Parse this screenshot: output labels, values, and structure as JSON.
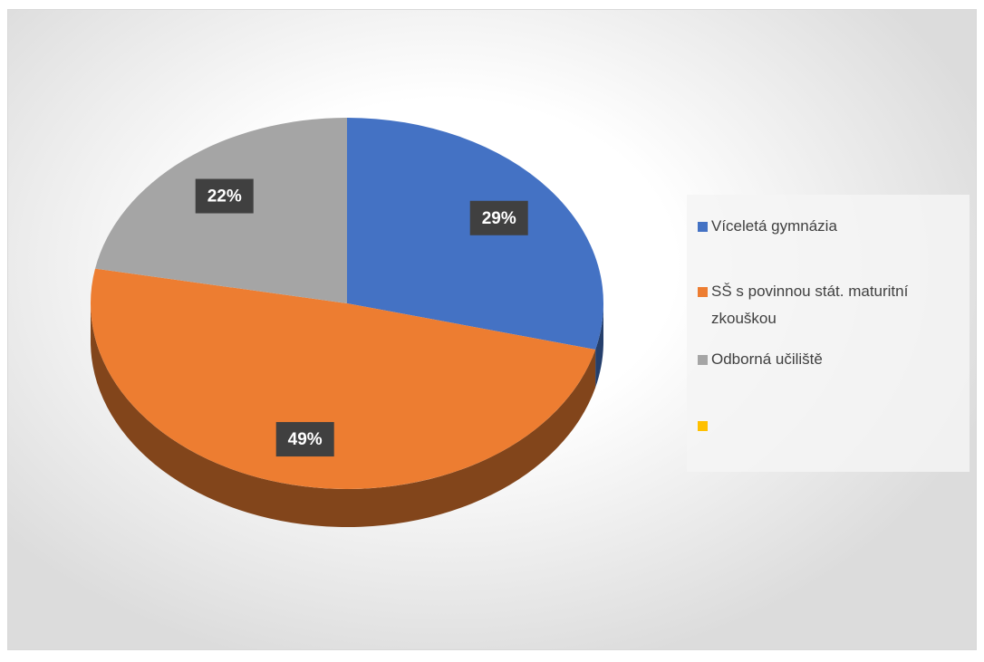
{
  "chart_data": {
    "type": "pie",
    "categories": [
      "Víceletá gymnázia",
      "SŠ s povinnou stát. maturitní zkouškou",
      "Odborná učiliště",
      null
    ],
    "values": [
      29,
      49,
      22,
      0
    ],
    "value_labels": [
      "29%",
      "49%",
      "22%",
      null
    ],
    "colors": [
      "#4472c4",
      "#ed7d31",
      "#a5a5a5",
      "#ffc000"
    ],
    "legend": "right"
  }
}
